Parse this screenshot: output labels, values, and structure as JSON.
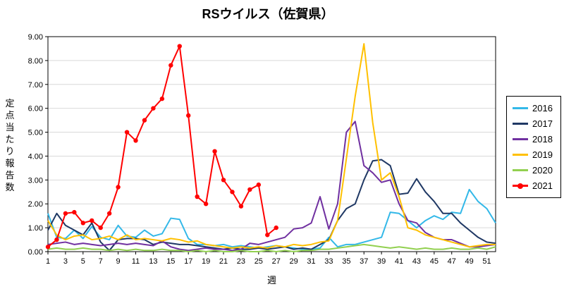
{
  "chart_data": {
    "type": "line",
    "title": "RSウイルス（佐賀県）",
    "xlabel": "週",
    "ylabel": "定点当たり報告数",
    "x_min": 1,
    "x_max": 52,
    "y_min": 0,
    "y_max": 9,
    "grid": true,
    "legend_position": "right",
    "y_ticks": [
      "0.00",
      "1.00",
      "2.00",
      "3.00",
      "4.00",
      "5.00",
      "6.00",
      "7.00",
      "8.00",
      "9.00"
    ],
    "x_ticks": [
      "1",
      "3",
      "5",
      "7",
      "9",
      "11",
      "13",
      "15",
      "17",
      "19",
      "21",
      "23",
      "25",
      "27",
      "29",
      "31",
      "33",
      "35",
      "37",
      "39",
      "41",
      "43",
      "45",
      "47",
      "49",
      "51"
    ],
    "series": [
      {
        "name": "2016",
        "color": "#33B8E8",
        "marker": false,
        "values": [
          1.6,
          0.6,
          0.55,
          0.9,
          0.55,
          1.05,
          0.6,
          0.5,
          1.1,
          0.65,
          0.6,
          0.9,
          0.65,
          0.75,
          1.4,
          1.35,
          0.55,
          0.3,
          0.3,
          0.25,
          0.3,
          0.2,
          0.25,
          0.2,
          0.15,
          0.2,
          0.25,
          0.2,
          0.15,
          0.1,
          0.1,
          0.15,
          0.6,
          0.2,
          0.3,
          0.3,
          0.4,
          0.5,
          0.6,
          1.65,
          1.6,
          1.3,
          1.0,
          1.3,
          1.5,
          1.35,
          1.65,
          1.6,
          2.6,
          2.1,
          1.8,
          1.2
        ]
      },
      {
        "name": "2017",
        "color": "#1F3864",
        "marker": false,
        "values": [
          0.9,
          1.6,
          1.1,
          0.9,
          0.7,
          1.2,
          0.4,
          0.05,
          0.5,
          0.55,
          0.55,
          0.5,
          0.3,
          0.4,
          0.35,
          0.3,
          0.3,
          0.25,
          0.2,
          0.15,
          0.1,
          0.15,
          0.1,
          0.1,
          0.15,
          0.1,
          0.15,
          0.2,
          0.1,
          0.15,
          0.1,
          0.3,
          0.5,
          1.3,
          1.8,
          2.0,
          3.0,
          3.8,
          3.85,
          3.6,
          2.4,
          2.45,
          3.05,
          2.5,
          2.1,
          1.6,
          1.6,
          1.2,
          0.9,
          0.6,
          0.4,
          0.35
        ]
      },
      {
        "name": "2018",
        "color": "#7030A0",
        "marker": false,
        "values": [
          0.3,
          0.35,
          0.4,
          0.3,
          0.35,
          0.3,
          0.25,
          0.3,
          0.35,
          0.3,
          0.35,
          0.3,
          0.25,
          0.45,
          0.2,
          0.1,
          0.05,
          0.1,
          0.15,
          0.1,
          0.1,
          0.05,
          0.1,
          0.35,
          0.3,
          0.4,
          0.5,
          0.6,
          0.95,
          1.0,
          1.2,
          2.3,
          0.95,
          2.0,
          5.0,
          5.45,
          3.6,
          3.3,
          2.9,
          3.0,
          2.0,
          1.3,
          1.2,
          0.8,
          0.6,
          0.5,
          0.5,
          0.35,
          0.2,
          0.2,
          0.25,
          0.3
        ]
      },
      {
        "name": "2019",
        "color": "#FFC000",
        "marker": false,
        "values": [
          1.3,
          0.7,
          0.5,
          0.65,
          0.7,
          0.5,
          0.55,
          0.65,
          0.5,
          0.7,
          0.5,
          0.55,
          0.5,
          0.45,
          0.55,
          0.5,
          0.4,
          0.45,
          0.3,
          0.25,
          0.2,
          0.15,
          0.2,
          0.15,
          0.2,
          0.15,
          0.25,
          0.2,
          0.3,
          0.25,
          0.3,
          0.4,
          0.45,
          1.3,
          3.9,
          6.5,
          8.7,
          5.4,
          3.0,
          3.3,
          2.3,
          1.0,
          0.9,
          0.7,
          0.6,
          0.5,
          0.4,
          0.3,
          0.2,
          0.25,
          0.3,
          0.3
        ]
      },
      {
        "name": "2020",
        "color": "#92D050",
        "marker": false,
        "values": [
          0.1,
          0.15,
          0.1,
          0.1,
          0.15,
          0.1,
          0.1,
          0.05,
          0.1,
          0.05,
          0.1,
          0.05,
          0.05,
          0.1,
          0.05,
          0.05,
          0,
          0.05,
          0,
          0.05,
          0,
          0,
          0.05,
          0,
          0,
          0.05,
          0,
          0.05,
          0,
          0.05,
          0.05,
          0.1,
          0.1,
          0.15,
          0.2,
          0.25,
          0.3,
          0.25,
          0.2,
          0.15,
          0.2,
          0.15,
          0.1,
          0.15,
          0.1,
          0.1,
          0.15,
          0.1,
          0.1,
          0.15,
          0.1,
          0.2
        ]
      },
      {
        "name": "2021",
        "color": "#FF0000",
        "marker": true,
        "values": [
          0.2,
          0.5,
          1.6,
          1.65,
          1.2,
          1.3,
          1.0,
          1.6,
          2.7,
          5.0,
          4.65,
          5.5,
          6.0,
          6.4,
          7.8,
          8.6,
          5.7,
          2.3,
          2.0,
          4.2,
          3.0,
          2.5,
          1.9,
          2.6,
          2.8,
          0.7,
          1.0,
          null,
          null,
          null,
          null,
          null,
          null,
          null,
          null,
          null,
          null,
          null,
          null,
          null,
          null,
          null,
          null,
          null,
          null,
          null,
          null,
          null,
          null,
          null,
          null,
          null
        ]
      }
    ]
  }
}
